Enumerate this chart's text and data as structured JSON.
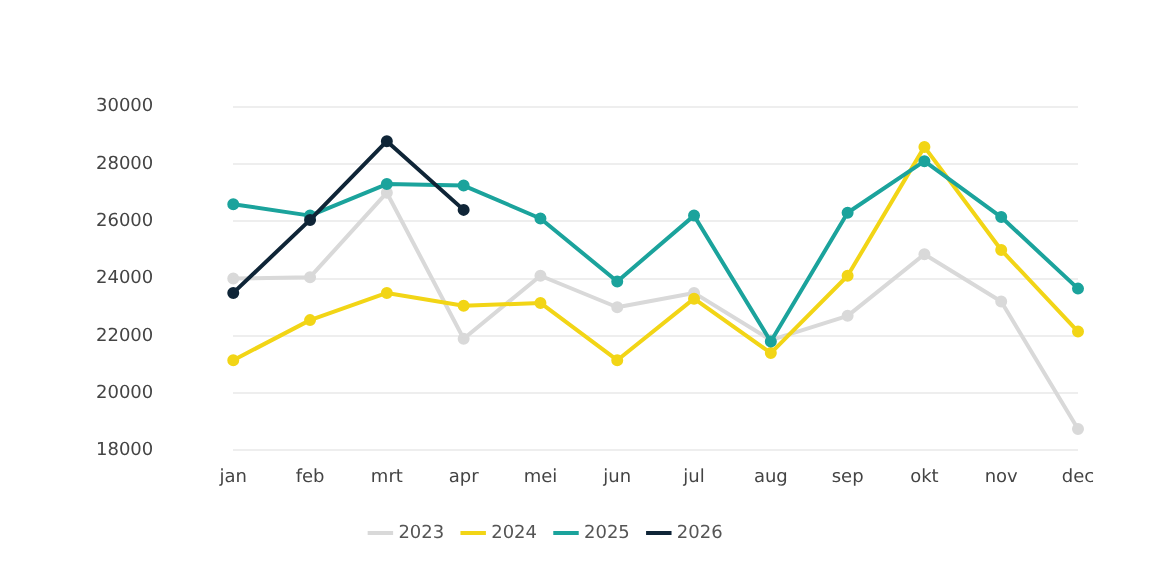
{
  "chart_data": {
    "type": "line",
    "categories": [
      "jan",
      "feb",
      "mrt",
      "apr",
      "mei",
      "jun",
      "jul",
      "aug",
      "sep",
      "okt",
      "nov",
      "dec"
    ],
    "series": [
      {
        "name": "2023",
        "color": "#d9d9d9",
        "values": [
          24000,
          24050,
          27000,
          21900,
          24100,
          23000,
          23500,
          21850,
          22700,
          24850,
          23200,
          18750
        ]
      },
      {
        "name": "2024",
        "color": "#f2d516",
        "values": [
          21150,
          22550,
          23500,
          23050,
          23150,
          21150,
          23300,
          21400,
          24100,
          28600,
          25000,
          22150
        ]
      },
      {
        "name": "2025",
        "color": "#1ba39c",
        "values": [
          26600,
          26200,
          27300,
          27250,
          26100,
          23900,
          26200,
          21800,
          26300,
          28100,
          26150,
          23650
        ]
      },
      {
        "name": "2026",
        "color": "#0f2537",
        "values": [
          23500,
          26050,
          28800,
          26400,
          null,
          null,
          null,
          null,
          null,
          null,
          null,
          null
        ]
      }
    ],
    "ylim": [
      18000,
      30000
    ],
    "yticks": [
      18000,
      20000,
      22000,
      24000,
      26000,
      28000,
      30000
    ],
    "grid": "y",
    "legend": "bottom",
    "marker": "circle",
    "line_style": "solid"
  }
}
